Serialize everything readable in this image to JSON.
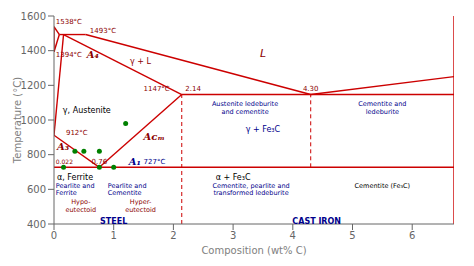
{
  "chart_data": {
    "type": "line",
    "xlabel": "Composition (wt% C)",
    "ylabel": "Temperature (°C)",
    "xlim": [
      0,
      6.7
    ],
    "ylim": [
      400,
      1600
    ],
    "xticks": [
      0,
      1,
      2,
      3,
      4,
      5,
      6
    ],
    "yticks": [
      400,
      600,
      800,
      1000,
      1200,
      1400,
      1600
    ],
    "grid": false,
    "series": [
      {
        "type": "line",
        "color": "#cc0000",
        "line_style": "solid",
        "segments": [
          {
            "x": [
              0,
              0.09
            ],
            "y": [
              1538,
              1493
            ]
          },
          {
            "x": [
              0.09,
              0.53
            ],
            "y": [
              1493,
              1493
            ]
          },
          {
            "x": [
              0,
              0.09
            ],
            "y": [
              1394,
              1493
            ]
          },
          {
            "x": [
              0,
              0
            ],
            "y": [
              1394,
              1538
            ]
          },
          {
            "x": [
              0,
              0.16
            ],
            "y": [
              912,
              1493
            ]
          },
          {
            "x": [
              0.16,
              2.14
            ],
            "y": [
              1493,
              1147
            ]
          },
          {
            "x": [
              0.53,
              4.3
            ],
            "y": [
              1493,
              1147
            ]
          },
          {
            "x": [
              2.14,
              6.7
            ],
            "y": [
              1147,
              1147
            ]
          },
          {
            "x": [
              0.76,
              2.14
            ],
            "y": [
              727,
              1147
            ]
          },
          {
            "x": [
              0,
              6.7
            ],
            "y": [
              727,
              727
            ]
          },
          {
            "x": [
              4.3,
              6.7
            ],
            "y": [
              1147,
              1250
            ]
          },
          {
            "x": [
              6.7,
              6.7
            ],
            "y": [
              400,
              1600
            ]
          },
          {
            "x": [
              0,
              0.76
            ],
            "y": [
              912,
              727
            ]
          }
        ]
      },
      {
        "type": "line",
        "color": "#cc0000",
        "line_style": "dashed",
        "segments": [
          {
            "x": [
              2.14,
              2.14
            ],
            "y": [
              400,
              1147
            ]
          },
          {
            "x": [
              4.3,
              4.3
            ],
            "y": [
              727,
              1147
            ]
          }
        ]
      },
      {
        "type": "scatter",
        "color": "green",
        "marker": "circle",
        "x": [
          0.76,
          0.16,
          0.5,
          0.76,
          1.2,
          0.35,
          1.0
        ],
        "y": [
          727,
          727,
          820,
          820,
          980,
          820,
          727
        ]
      }
    ],
    "annotations": [
      {
        "text": "1538°C",
        "color": "darkred"
      },
      {
        "text": "1493°C",
        "color": "darkred"
      },
      {
        "text": "1394°C",
        "color": "darkred"
      },
      {
        "text": "A₄",
        "color": "darkred"
      },
      {
        "text": "1147°C",
        "color": "darkred"
      },
      {
        "text": "A₁",
        "color": "darkblue"
      },
      {
        "text": "727°C",
        "color": "darkblue"
      },
      {
        "text": "A₃",
        "color": "darkred"
      },
      {
        "text": "912°C",
        "color": "darkred"
      },
      {
        "text": "Aᴄₘ",
        "color": "darkred"
      },
      {
        "text": "2.14",
        "color": "darkred"
      },
      {
        "text": "4.30",
        "color": "darkred"
      },
      {
        "text": "0.76",
        "color": "darkred"
      },
      {
        "text": "0.022",
        "color": "darkred"
      },
      {
        "text": "γ, Austenite",
        "color": "black"
      },
      {
        "text": "α, Ferrite",
        "color": "black"
      },
      {
        "text": "α + Fe₃C",
        "color": "black"
      },
      {
        "text": "γ + Fe₃C",
        "color": "darkblue"
      },
      {
        "text": "L",
        "color": "darkred"
      },
      {
        "text": "γ + L",
        "color": "darkred"
      },
      {
        "text": "Pearlite and\nFerrite",
        "color": "darkblue"
      },
      {
        "text": "Pearlite and\nCementite",
        "color": "darkblue"
      },
      {
        "text": "Cementite, pearlite and\ntransformed ledeburite",
        "color": "darkblue"
      },
      {
        "text": "Cementite (Fe₃C)",
        "color": "black"
      },
      {
        "text": "Austenite ledeburite\nand cementite",
        "color": "darkblue"
      },
      {
        "text": "Cementite and\nledeburite",
        "color": "darkblue"
      },
      {
        "text": "Hypo-\neutectoid",
        "color": "darkred"
      },
      {
        "text": "Hyper-\neutectoid",
        "color": "darkred"
      },
      {
        "text": "STEEL",
        "color": "darkblue"
      },
      {
        "text": "CAST IRON",
        "color": "darkblue"
      }
    ]
  }
}
